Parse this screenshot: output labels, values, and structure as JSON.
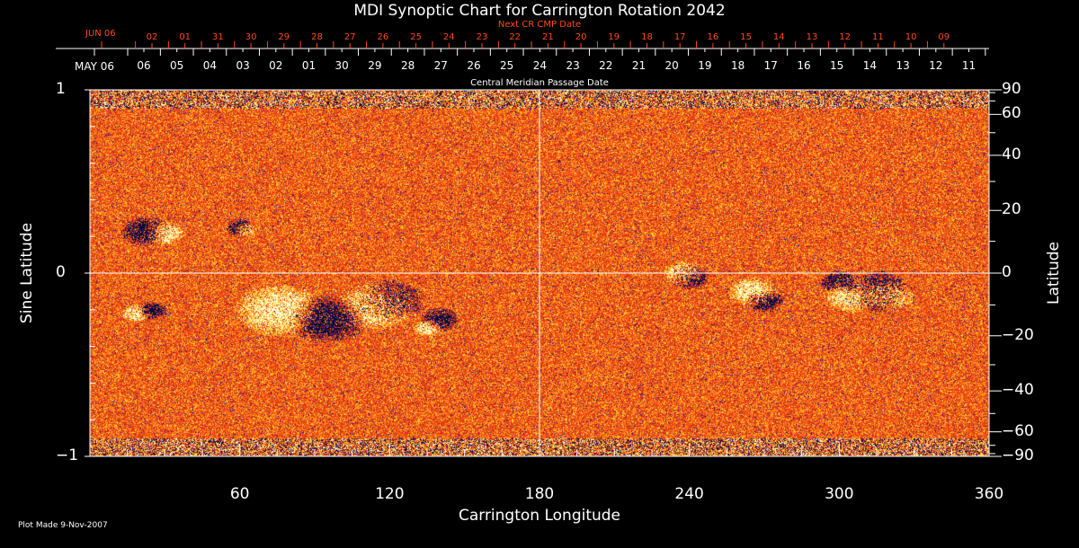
{
  "chart_data": {
    "type": "heatmap",
    "title": "MDI Synoptic Chart for Carrington Rotation 2042",
    "xlabel": "Carrington Longitude",
    "ylabel_left": "Sine Latitude",
    "ylabel_right": "Latitude",
    "xlim": [
      0,
      360
    ],
    "ylim": [
      -1,
      1
    ],
    "x_ticks": [
      "60",
      "120",
      "180",
      "240",
      "300",
      "360"
    ],
    "x_tick_values": [
      60,
      120,
      180,
      240,
      300,
      360
    ],
    "y_left_ticks": [
      "1",
      "0",
      "−1"
    ],
    "y_left_tick_values": [
      1,
      0,
      -1
    ],
    "y_right_ticks": [
      "90",
      "60",
      "40",
      "20",
      "0",
      "−20",
      "−40",
      "−60",
      "−90"
    ],
    "y_right_tick_values": [
      90,
      60,
      40,
      20,
      0,
      -20,
      -40,
      -60,
      -90
    ],
    "top_axis_label": "Central Meridian Passage Date",
    "top_axis_start": "MAY 06",
    "top_axis_dates": [
      "06",
      "05",
      "04",
      "03",
      "02",
      "01",
      "30",
      "29",
      "28",
      "27",
      "26",
      "25",
      "24",
      "23",
      "22",
      "21",
      "20",
      "19",
      "18",
      "17",
      "16",
      "15",
      "14",
      "13",
      "12",
      "11"
    ],
    "next_axis_label": "Next CR CMP Date",
    "next_axis_start": "JUN 06",
    "next_axis_dates": [
      "02",
      "01",
      "31",
      "30",
      "29",
      "28",
      "27",
      "26",
      "25",
      "24",
      "23",
      "22",
      "21",
      "20",
      "19",
      "18",
      "17",
      "16",
      "15",
      "14",
      "13",
      "12",
      "11",
      "10",
      "09"
    ],
    "colors": {
      "background": "#e8401a",
      "positive": "#ffffc0",
      "negative": "#0a0a50"
    }
  },
  "footer": "Plot Made  9-Nov-2007"
}
